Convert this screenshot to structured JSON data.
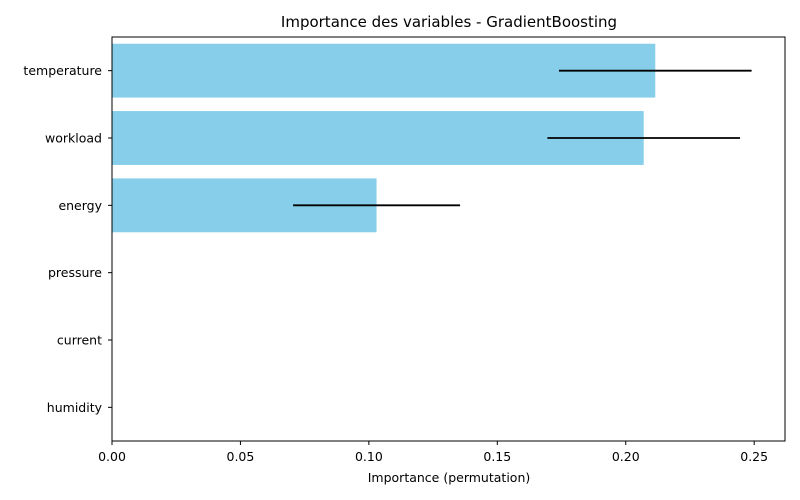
{
  "chart_data": {
    "type": "bar",
    "orientation": "horizontal",
    "title": "Importance des variables - GradientBoosting",
    "xlabel": "Importance (permutation)",
    "ylabel": "",
    "categories": [
      "temperature",
      "workload",
      "energy",
      "pressure",
      "current",
      "humidity"
    ],
    "values": [
      0.2115,
      0.207,
      0.103,
      0.0,
      0.0,
      0.0
    ],
    "errors": [
      0.0375,
      0.0375,
      0.0325,
      0.0,
      0.0,
      0.0
    ],
    "xlim": [
      0.0,
      0.262
    ],
    "xticks": [
      0.0,
      0.05,
      0.1,
      0.15,
      0.2,
      0.25
    ],
    "xtick_labels": [
      "0.00",
      "0.05",
      "0.10",
      "0.15",
      "0.20",
      "0.25"
    ],
    "bar_color": "#87CEEB",
    "error_color": "#000000",
    "grid": false
  }
}
